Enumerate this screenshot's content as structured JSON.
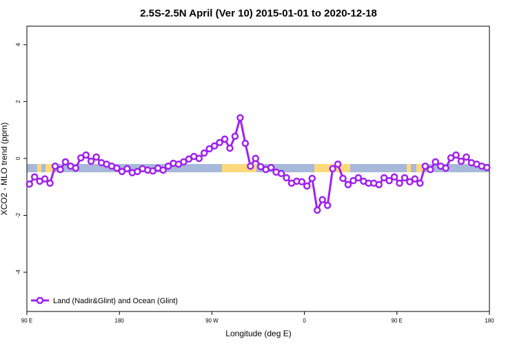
{
  "chart_data": {
    "type": "line",
    "title": "2.5S-2.5N April (Ver 10)   2015-01-01 to 2020-12-18",
    "x_label": "Longitude (deg E)",
    "y_label": "XCO2 - MLO trend (ppm)",
    "x": [
      92.5,
      97.5,
      102.5,
      107.5,
      112.5,
      117.5,
      122.5,
      127.5,
      132.5,
      137.5,
      142.5,
      147.5,
      152.5,
      157.5,
      162.5,
      167.5,
      172.5,
      177.5,
      182.5,
      187.5,
      192.5,
      197.5,
      202.5,
      207.5,
      212.5,
      217.5,
      222.5,
      227.5,
      232.5,
      237.5,
      242.5,
      247.5,
      252.5,
      257.5,
      262.5,
      267.5,
      272.5,
      277.5,
      282.5,
      287.5,
      292.5,
      297.5,
      302.5,
      307.5,
      312.5,
      317.5,
      322.5,
      327.5,
      332.5,
      337.5,
      342.5,
      347.5,
      352.5,
      357.5,
      362.5,
      367.5,
      372.5,
      377.5,
      382.5,
      387.5,
      392.5,
      397.5,
      402.5,
      407.5,
      412.5,
      417.5,
      422.5,
      427.5,
      432.5,
      437.5,
      442.5,
      447.5,
      452.5,
      457.5,
      462.5,
      467.5,
      472.5,
      477.5,
      482.5,
      487.5,
      492.5,
      497.5,
      502.5,
      507.5,
      512.5,
      517.5,
      522.5,
      527.5,
      532.5,
      537.5
    ],
    "series": [
      {
        "name": "Land (Nadir&Glint) and Ocean (Glint)",
        "color": "#a020f0",
        "values": [
          -0.9,
          -0.65,
          -0.8,
          -0.72,
          -0.87,
          -0.27,
          -0.39,
          -0.12,
          -0.27,
          -0.34,
          0.02,
          0.12,
          -0.1,
          0.05,
          -0.15,
          -0.2,
          -0.27,
          -0.34,
          -0.46,
          -0.36,
          -0.5,
          -0.46,
          -0.36,
          -0.41,
          -0.44,
          -0.34,
          -0.41,
          -0.27,
          -0.17,
          -0.2,
          -0.12,
          -0.02,
          0.07,
          0,
          0.19,
          0.34,
          0.44,
          0.56,
          0.68,
          0.36,
          0.78,
          1.43,
          0.53,
          -0.27,
          0,
          -0.29,
          -0.39,
          -0.32,
          -0.48,
          -0.53,
          -0.68,
          -0.87,
          -0.8,
          -0.82,
          -0.97,
          -0.7,
          -1.82,
          -1.45,
          -1.65,
          -0.36,
          -0.2,
          -0.7,
          -0.92,
          -0.78,
          -0.68,
          -0.8,
          -0.87,
          -0.87,
          -0.92,
          -0.68,
          -0.78,
          -0.65,
          -0.87,
          -0.68,
          -0.82,
          -0.72,
          -0.87,
          -0.27,
          -0.39,
          -0.12,
          -0.27,
          -0.34,
          0.02,
          0.12,
          -0.1,
          0.05,
          -0.15,
          -0.2,
          -0.27,
          -0.32
        ]
      }
    ],
    "xlim": [
      90,
      540
    ],
    "xticks": [
      {
        "value": 90,
        "label": "90 E"
      },
      180,
      {
        "value": 270,
        "label": "90 W"
      },
      {
        "value": 360,
        "label": "0"
      },
      {
        "value": 450,
        "label": "90 E"
      },
      {
        "value": 540,
        "label": "180"
      }
    ],
    "ylim": [
      -5.38,
      4.65
    ],
    "yticks": [
      -4,
      -2,
      0,
      2,
      4
    ],
    "legend": "bottom-left"
  }
}
